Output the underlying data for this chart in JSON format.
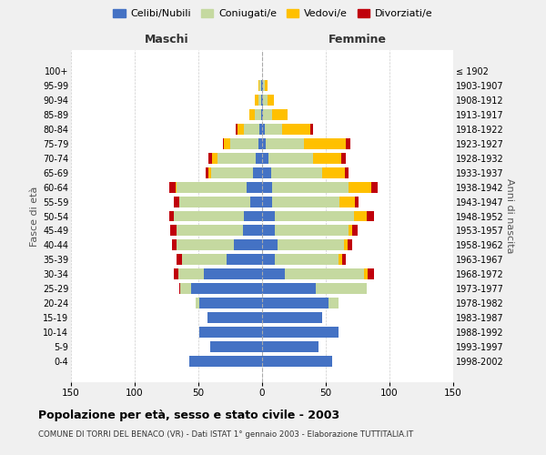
{
  "age_groups": [
    "100+",
    "95-99",
    "90-94",
    "85-89",
    "80-84",
    "75-79",
    "70-74",
    "65-69",
    "60-64",
    "55-59",
    "50-54",
    "45-49",
    "40-44",
    "35-39",
    "30-34",
    "25-29",
    "20-24",
    "15-19",
    "10-14",
    "5-9",
    "0-4"
  ],
  "birth_years": [
    "≤ 1902",
    "1903-1907",
    "1908-1912",
    "1913-1917",
    "1918-1922",
    "1923-1927",
    "1928-1932",
    "1933-1937",
    "1938-1942",
    "1943-1947",
    "1948-1952",
    "1953-1957",
    "1958-1962",
    "1963-1967",
    "1968-1972",
    "1973-1977",
    "1978-1982",
    "1983-1987",
    "1988-1992",
    "1993-1997",
    "1998-2002"
  ],
  "males": {
    "celibi": [
      0,
      1,
      1,
      1,
      2,
      3,
      5,
      7,
      12,
      9,
      14,
      15,
      22,
      28,
      46,
      56,
      49,
      43,
      49,
      41,
      57
    ],
    "coniugati": [
      0,
      1,
      2,
      5,
      12,
      22,
      30,
      33,
      55,
      56,
      55,
      52,
      45,
      35,
      20,
      8,
      3,
      0,
      0,
      0,
      0
    ],
    "vedovi": [
      0,
      1,
      3,
      4,
      5,
      5,
      4,
      2,
      1,
      0,
      0,
      0,
      0,
      0,
      0,
      0,
      0,
      0,
      0,
      0,
      0
    ],
    "divorziati": [
      0,
      0,
      0,
      0,
      2,
      1,
      3,
      2,
      5,
      4,
      4,
      5,
      4,
      4,
      3,
      1,
      0,
      0,
      0,
      0,
      0
    ]
  },
  "females": {
    "nubili": [
      0,
      1,
      1,
      1,
      2,
      3,
      5,
      7,
      8,
      8,
      10,
      10,
      12,
      10,
      18,
      42,
      52,
      47,
      60,
      44,
      55
    ],
    "coniugate": [
      0,
      1,
      3,
      7,
      14,
      30,
      35,
      40,
      60,
      53,
      62,
      58,
      52,
      50,
      62,
      40,
      8,
      0,
      0,
      0,
      0
    ],
    "vedove": [
      0,
      2,
      5,
      12,
      22,
      33,
      22,
      18,
      18,
      12,
      10,
      3,
      3,
      3,
      3,
      0,
      0,
      0,
      0,
      0,
      0
    ],
    "divorziate": [
      0,
      0,
      0,
      0,
      2,
      3,
      4,
      3,
      5,
      3,
      6,
      4,
      4,
      3,
      5,
      0,
      0,
      0,
      0,
      0,
      0
    ]
  },
  "colors": {
    "celibi": "#4472c4",
    "coniugati": "#c5d9a0",
    "vedovi": "#ffc000",
    "divorziati": "#c0000b"
  },
  "title": "Popolazione per età, sesso e stato civile - 2003",
  "subtitle": "COMUNE DI TORRI DEL BENACO (VR) - Dati ISTAT 1° gennaio 2003 - Elaborazione TUTTITALIA.IT",
  "xlabel_left": "Maschi",
  "xlabel_right": "Femmine",
  "ylabel_left": "Fasce di età",
  "ylabel_right": "Anni di nascita",
  "xlim": 150,
  "legend_labels": [
    "Celibi/Nubili",
    "Coniugati/e",
    "Vedovi/e",
    "Divorziati/e"
  ],
  "background_color": "#f0f0f0",
  "plot_bg_color": "#ffffff"
}
